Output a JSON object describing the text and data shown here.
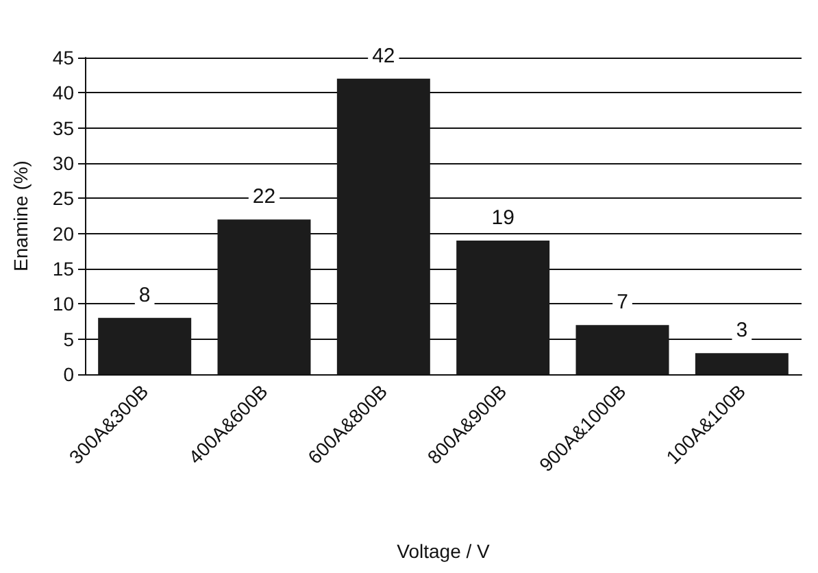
{
  "chart_data": {
    "type": "bar",
    "xlabel": "Voltage / V",
    "ylabel": "Enamine (%)",
    "categories": [
      "300A&300B",
      "400A&600B",
      "600A&800B",
      "800A&900B",
      "900A&1000B",
      "100A&100B"
    ],
    "values": [
      8,
      22,
      42,
      19,
      7,
      3
    ],
    "color": "#1c1c1c",
    "ylim": [
      0,
      45
    ],
    "yticks": [
      0,
      5,
      10,
      15,
      20,
      25,
      30,
      35,
      40,
      45
    ],
    "grid": "y",
    "data_labels": true
  }
}
